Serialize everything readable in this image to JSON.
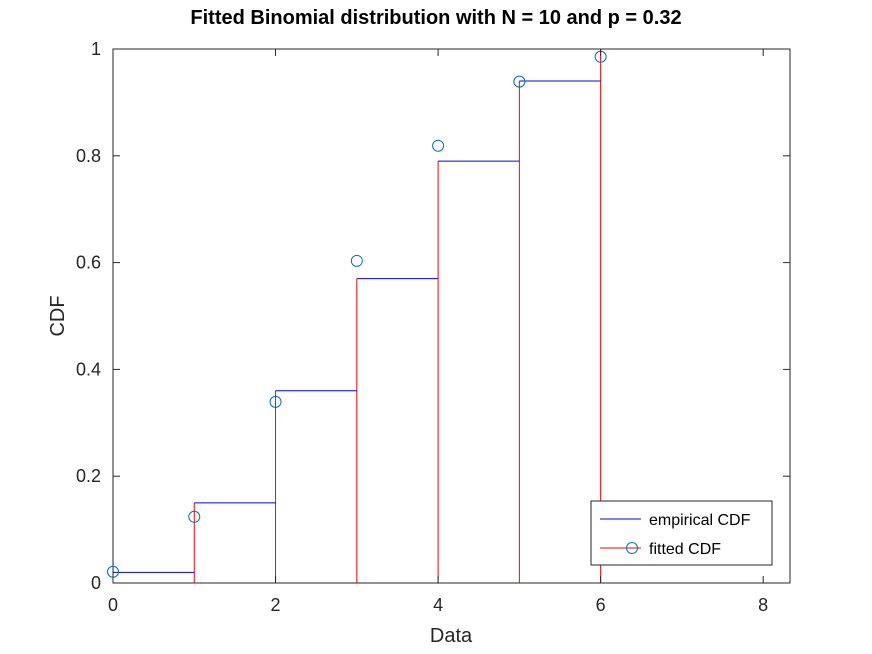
{
  "chart_data": {
    "type": "line",
    "title": "Fitted Binomial distribution with N = 10 and p = 0.32",
    "xlabel": "Data",
    "ylabel": "CDF",
    "xlim": [
      0,
      8.33
    ],
    "ylim": [
      0,
      1
    ],
    "xticks": [
      "0",
      "2",
      "4",
      "6",
      "8"
    ],
    "yticks": [
      "0",
      "0.2",
      "0.4",
      "0.6",
      "0.8",
      "1"
    ],
    "grid": false,
    "legend_position": "bottom-right",
    "series": [
      {
        "name": "empirical CDF",
        "style": "blue stairs",
        "color": "#0000ff",
        "x": [
          0,
          1,
          2,
          3,
          4,
          5,
          6
        ],
        "y": [
          0.02,
          0.15,
          0.36,
          0.57,
          0.79,
          0.94,
          1.0
        ]
      },
      {
        "name": "fitted CDF",
        "style": "red stems with circle markers",
        "color": "#ff0000",
        "marker_color": "#0072bd",
        "x": [
          0,
          1,
          2,
          3,
          4,
          5,
          6
        ],
        "y": [
          0.0211,
          0.124,
          0.3392,
          0.6033,
          0.8188,
          0.9389,
          0.9855
        ]
      }
    ]
  }
}
